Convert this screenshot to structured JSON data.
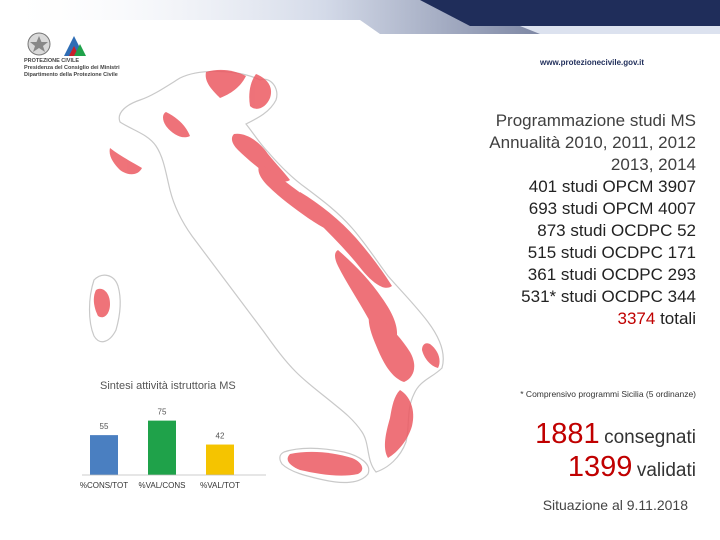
{
  "header": {
    "logo_text": [
      "PROTEZIONE CIVILE",
      "Presidenza del Consiglio dei Ministri",
      "Dipartimento della Protezione Civile"
    ],
    "website": "www.protezionecivile.gov.it"
  },
  "summary": {
    "title_line1": "Programmazione studi MS",
    "title_line2": "Annualità 2010, 2011, 2012",
    "title_line3": "2013, 2014",
    "items": [
      "401 studi OPCM 3907",
      "693 studi OPCM 4007",
      "873 studi OCDPC 52",
      "515 studi OCDPC 171",
      "361 studi OCDPC 293",
      "531* studi OCDPC 344"
    ],
    "total_value": "3374",
    "total_label": "totali",
    "footnote": "* Comprensivo programmi Sicilia (5 ordinanze)"
  },
  "status": {
    "delivered_value": "1881",
    "delivered_label": "consegnati",
    "validated_value": "1399",
    "validated_label": "validati",
    "date": "Situazione al 9.11.2018"
  },
  "colors": {
    "accent_red": "#c00000",
    "map_fill": "#ec5a62",
    "header_band": "#1f2d5a"
  },
  "chart_data": {
    "type": "bar",
    "title": "Sintesi attività istruttoria MS",
    "categories": [
      "%CONS/TOT",
      "%VAL/CONS",
      "%VAL/TOT"
    ],
    "values": [
      55,
      75,
      42
    ],
    "colors": [
      "#4a7fc1",
      "#1fa24a",
      "#f5c400"
    ],
    "ylim": [
      0,
      80
    ],
    "grid": false,
    "legend": "none"
  }
}
